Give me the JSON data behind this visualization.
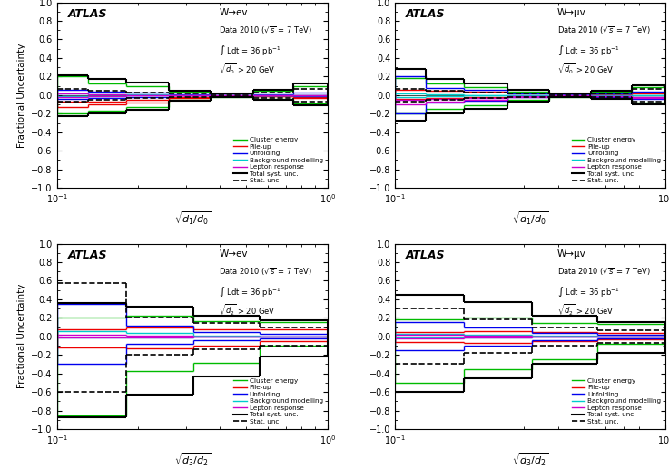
{
  "panels": [
    {
      "title_decay": "W→ev",
      "xlabel": "$\\sqrt{d_1/d_0}$",
      "condition_var": "d_0",
      "bin_edges": [
        0.1,
        0.13,
        0.18,
        0.26,
        0.37,
        0.53,
        0.75,
        1.0
      ],
      "series": {
        "cluster_energy": [
          0.2,
          0.13,
          0.1,
          0.04,
          0.02,
          0.05,
          0.1
        ],
        "cluster_energy_neg": [
          -0.2,
          -0.17,
          -0.13,
          -0.05,
          -0.02,
          -0.04,
          -0.09
        ],
        "pileup": [
          -0.07,
          -0.07,
          -0.05,
          -0.02,
          -0.01,
          -0.01,
          -0.02
        ],
        "pileup_neg": [
          -0.13,
          -0.1,
          -0.08,
          -0.03,
          -0.01,
          -0.01,
          -0.03
        ],
        "unfolding": [
          0.06,
          0.04,
          0.03,
          0.01,
          0.0,
          0.01,
          0.03
        ],
        "unfolding_neg": [
          -0.04,
          -0.03,
          -0.02,
          0.0,
          0.0,
          0.0,
          -0.01
        ],
        "background": [
          0.02,
          0.01,
          0.01,
          0.0,
          0.0,
          0.0,
          0.0
        ],
        "background_neg": [
          -0.01,
          -0.01,
          0.0,
          0.0,
          0.0,
          0.0,
          0.0
        ],
        "lepton": [
          0.02,
          0.01,
          0.0,
          0.0,
          0.0,
          0.0,
          0.0
        ],
        "lepton_neg": [
          -0.02,
          -0.01,
          0.0,
          0.0,
          0.0,
          0.0,
          0.0
        ],
        "total_syst": [
          0.21,
          0.17,
          0.14,
          0.05,
          0.02,
          0.06,
          0.13
        ],
        "total_syst_neg": [
          -0.23,
          -0.2,
          -0.16,
          -0.06,
          -0.02,
          -0.05,
          -0.11
        ],
        "stat_unc": [
          0.07,
          0.05,
          0.03,
          0.02,
          0.01,
          0.03,
          0.07
        ],
        "stat_unc_neg": [
          -0.07,
          -0.05,
          -0.03,
          -0.02,
          -0.01,
          -0.03,
          -0.07
        ]
      }
    },
    {
      "title_decay": "W→μv",
      "xlabel": "$\\sqrt{d_1/d_0}$",
      "condition_var": "d_0",
      "bin_edges": [
        0.1,
        0.13,
        0.18,
        0.26,
        0.37,
        0.53,
        0.75,
        1.0
      ],
      "series": {
        "cluster_energy": [
          0.18,
          0.13,
          0.09,
          0.04,
          0.02,
          0.04,
          0.09
        ],
        "cluster_energy_neg": [
          -0.2,
          -0.15,
          -0.11,
          -0.05,
          -0.02,
          -0.03,
          -0.08
        ],
        "pileup": [
          0.06,
          0.05,
          0.04,
          0.02,
          0.01,
          0.01,
          0.02
        ],
        "pileup_neg": [
          -0.04,
          -0.03,
          -0.02,
          -0.01,
          0.0,
          -0.01,
          -0.02
        ],
        "unfolding": [
          0.2,
          0.08,
          0.06,
          0.02,
          0.01,
          0.02,
          0.04
        ],
        "unfolding_neg": [
          -0.2,
          -0.08,
          -0.06,
          -0.02,
          -0.01,
          -0.02,
          -0.04
        ],
        "background": [
          0.02,
          0.01,
          0.0,
          0.0,
          0.0,
          0.0,
          0.0
        ],
        "background_neg": [
          -0.02,
          -0.01,
          0.0,
          0.0,
          0.0,
          0.0,
          0.0
        ],
        "lepton": [
          -0.05,
          -0.04,
          -0.03,
          -0.01,
          0.0,
          -0.01,
          -0.02
        ],
        "lepton_neg": [
          -0.1,
          -0.07,
          -0.05,
          -0.02,
          0.0,
          -0.01,
          -0.03
        ],
        "total_syst": [
          0.28,
          0.17,
          0.13,
          0.06,
          0.02,
          0.05,
          0.11
        ],
        "total_syst_neg": [
          -0.28,
          -0.2,
          -0.15,
          -0.07,
          -0.02,
          -0.04,
          -0.1
        ],
        "stat_unc": [
          0.07,
          0.05,
          0.03,
          0.02,
          0.01,
          0.02,
          0.07
        ],
        "stat_unc_neg": [
          -0.07,
          -0.05,
          -0.03,
          -0.02,
          -0.01,
          -0.02,
          -0.07
        ]
      }
    },
    {
      "title_decay": "W→ev",
      "xlabel": "$\\sqrt{d_3/d_2}$",
      "condition_var": "d_2",
      "bin_edges": [
        0.1,
        0.18,
        0.32,
        0.56,
        1.0
      ],
      "series": {
        "cluster_energy": [
          0.2,
          0.22,
          0.16,
          0.15
        ],
        "cluster_energy_neg": [
          -0.85,
          -0.37,
          -0.29,
          -0.1
        ],
        "pileup": [
          0.08,
          0.1,
          0.08,
          0.08
        ],
        "pileup_neg": [
          -0.12,
          -0.13,
          -0.1,
          -0.05
        ],
        "unfolding": [
          0.35,
          0.12,
          0.05,
          0.03
        ],
        "unfolding_neg": [
          -0.3,
          -0.08,
          -0.04,
          -0.02
        ],
        "background": [
          0.06,
          0.04,
          0.01,
          0.0
        ],
        "background_neg": [
          -0.01,
          -0.01,
          0.0,
          0.0
        ],
        "lepton": [
          0.02,
          0.01,
          0.0,
          0.0
        ],
        "lepton_neg": [
          -0.01,
          -0.01,
          0.0,
          0.0
        ],
        "total_syst": [
          0.36,
          0.32,
          0.22,
          0.17
        ],
        "total_syst_neg": [
          -0.87,
          -0.63,
          -0.43,
          -0.22
        ],
        "stat_unc": [
          0.57,
          0.2,
          0.14,
          0.1
        ],
        "stat_unc_neg": [
          -0.6,
          -0.2,
          -0.14,
          -0.1
        ]
      }
    },
    {
      "title_decay": "W→μv",
      "xlabel": "$\\sqrt{d_3/d_2}$",
      "condition_var": "d_2",
      "bin_edges": [
        0.1,
        0.18,
        0.32,
        0.56,
        1.0
      ],
      "series": {
        "cluster_energy": [
          0.18,
          0.2,
          0.14,
          0.13
        ],
        "cluster_energy_neg": [
          -0.5,
          -0.35,
          -0.25,
          -0.08
        ],
        "pileup": [
          0.05,
          0.06,
          0.05,
          0.04
        ],
        "pileup_neg": [
          -0.06,
          -0.07,
          -0.05,
          -0.03
        ],
        "unfolding": [
          0.15,
          0.1,
          0.04,
          0.02
        ],
        "unfolding_neg": [
          -0.15,
          -0.1,
          -0.04,
          -0.02
        ],
        "background": [
          0.03,
          0.02,
          0.01,
          0.0
        ],
        "background_neg": [
          -0.01,
          -0.01,
          0.0,
          0.0
        ],
        "lepton": [
          0.02,
          0.01,
          0.0,
          0.0
        ],
        "lepton_neg": [
          -0.02,
          -0.01,
          0.0,
          0.0
        ],
        "total_syst": [
          0.45,
          0.37,
          0.22,
          0.15
        ],
        "total_syst_neg": [
          -0.6,
          -0.45,
          -0.3,
          -0.18
        ],
        "stat_unc": [
          0.3,
          0.18,
          0.1,
          0.07
        ],
        "stat_unc_neg": [
          -0.3,
          -0.18,
          -0.1,
          -0.07
        ]
      }
    }
  ],
  "colors": {
    "cluster_energy": "#00bb00",
    "pileup": "#ee0000",
    "unfolding": "#0000ee",
    "background": "#00cccc",
    "lepton": "#cc00cc",
    "total_syst": "#000000",
    "stat_unc": "#000000"
  },
  "legend_labels": [
    "Cluster energy",
    "Pile-up",
    "Unfolding",
    "Background modelling",
    "Lepton response",
    "Total syst. unc.",
    "Stat. unc."
  ],
  "ylim": [
    -1.0,
    1.0
  ],
  "ylabel": "Fractional Uncertainty",
  "atlas_label": "ATLAS",
  "data_info_line1": "Data 2010 (",
  "data_info_sqrt": "\\sqrt{s}",
  "data_info_line2": " = 7 TeV)",
  "lumi_info": "$\\int$ Ldt = 36 pb$^{-1}$"
}
